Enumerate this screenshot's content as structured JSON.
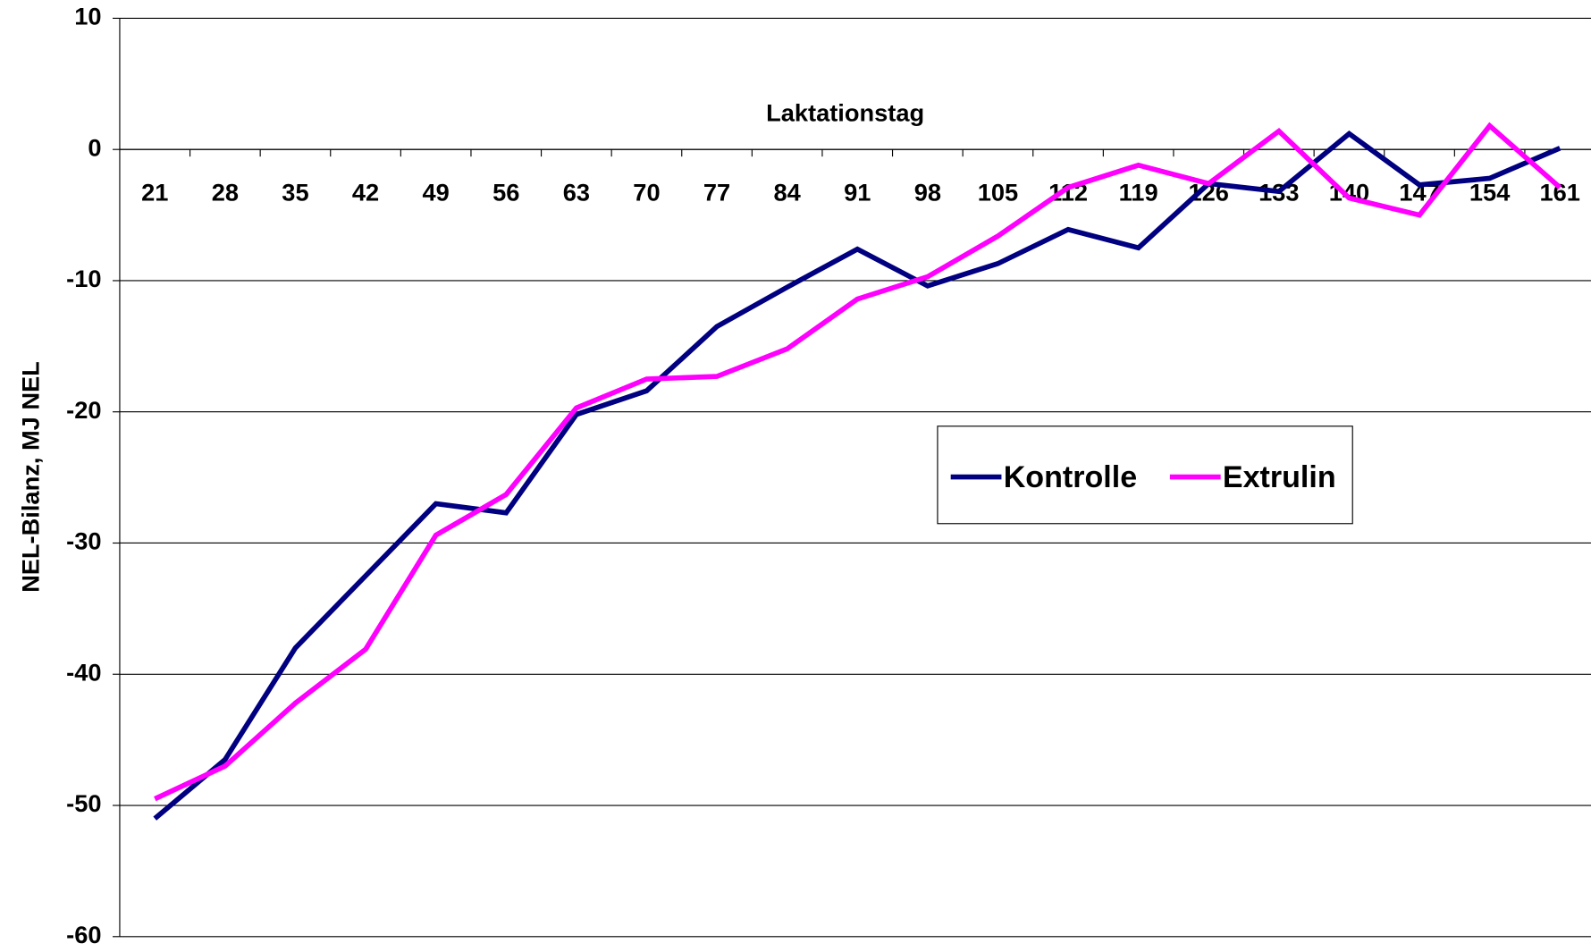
{
  "chart_data": {
    "type": "line",
    "x_label": "Laktationstag",
    "y_label": "NEL-Bilanz, MJ NEL",
    "categories": [
      21,
      28,
      35,
      42,
      49,
      56,
      63,
      70,
      77,
      84,
      91,
      98,
      105,
      112,
      119,
      126,
      133,
      140,
      147,
      154,
      161
    ],
    "series": [
      {
        "name": "Kontrolle",
        "color": "#000080",
        "values": [
          -51.0,
          -46.5,
          -38.0,
          -32.5,
          -27.0,
          -27.7,
          -20.2,
          -18.4,
          -13.5,
          -10.5,
          -7.6,
          -10.4,
          -8.7,
          -6.1,
          -7.5,
          -2.6,
          -3.2,
          1.2,
          -2.7,
          -2.2,
          0.1
        ]
      },
      {
        "name": "Extrulin",
        "color": "#ff00ff",
        "values": [
          -49.5,
          -47.0,
          -42.2,
          -38.1,
          -29.4,
          -26.3,
          -19.7,
          -17.5,
          -17.3,
          -15.2,
          -11.4,
          -9.7,
          -6.6,
          -2.9,
          -1.2,
          -2.6,
          1.4,
          -3.7,
          -5.0,
          1.8,
          -2.9
        ]
      }
    ],
    "ylim": [
      -60,
      10
    ],
    "yticks": [
      -60,
      -50,
      -40,
      -30,
      -20,
      -10,
      0,
      10
    ],
    "grid": true
  }
}
